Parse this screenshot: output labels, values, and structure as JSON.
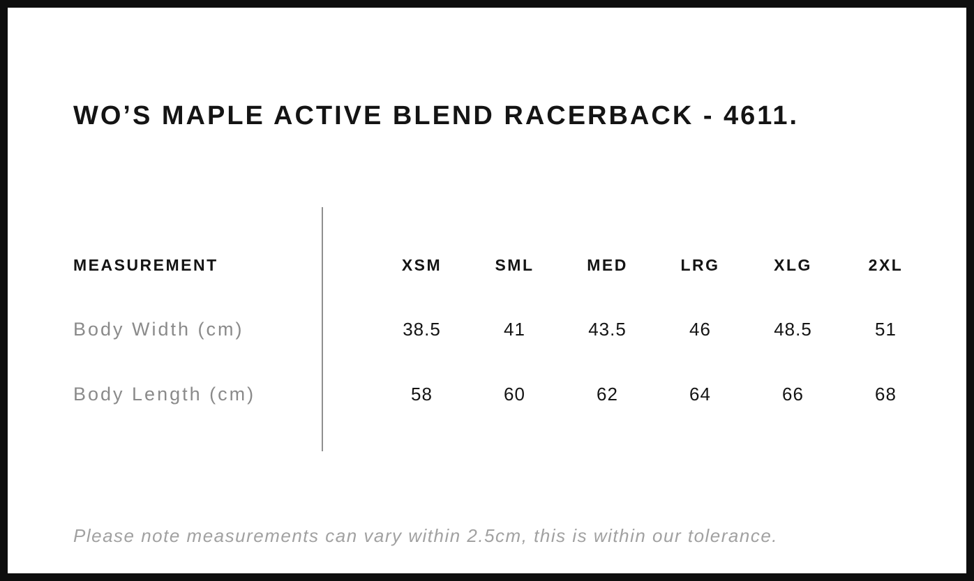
{
  "page": {
    "title": "WO’S MAPLE ACTIVE BLEND RACERBACK - 4611.",
    "note": "Please note measurements can vary within 2.5cm, this is within our tolerance."
  },
  "size_chart": {
    "measurement_label": "MEASUREMENT",
    "sizes": [
      "XSM",
      "SML",
      "MED",
      "LRG",
      "XLG",
      "2XL"
    ],
    "rows": [
      {
        "label": "Body Width (cm)",
        "values": [
          "38.5",
          "41",
          "43.5",
          "46",
          "48.5",
          "51"
        ]
      },
      {
        "label": "Body Length (cm)",
        "values": [
          "58",
          "60",
          "62",
          "64",
          "66",
          "68"
        ]
      }
    ]
  },
  "colors": {
    "background": "#ffffff",
    "border": "#0e0e0e",
    "text_primary": "#141414",
    "label_gray": "#8a8a8a",
    "note_gray": "#a1a1a1",
    "divider_gray": "#8f8f8f"
  }
}
